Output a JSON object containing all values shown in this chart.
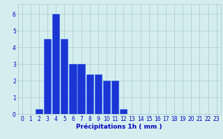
{
  "values": [
    0,
    0,
    0.3,
    4.5,
    6,
    4.5,
    3,
    3,
    2.4,
    2.4,
    2,
    2,
    0.3,
    0,
    0,
    0,
    0,
    0,
    0,
    0,
    0,
    0,
    0,
    0
  ],
  "bar_color": "#1a35d4",
  "bar_edge_color": "#2255ee",
  "background_color": "#d4eef0",
  "grid_color": "#aac8cc",
  "xlabel": "Précipitations 1h ( mm )",
  "xlabel_color": "#0000bb",
  "tick_color": "#0000bb",
  "ylim": [
    0,
    6.6
  ],
  "yticks": [
    0,
    1,
    2,
    3,
    4,
    5,
    6
  ],
  "n_bars": 24,
  "xlim": [
    -0.5,
    23.5
  ],
  "xlabel_fontsize": 6.5,
  "tick_fontsize": 5.5
}
